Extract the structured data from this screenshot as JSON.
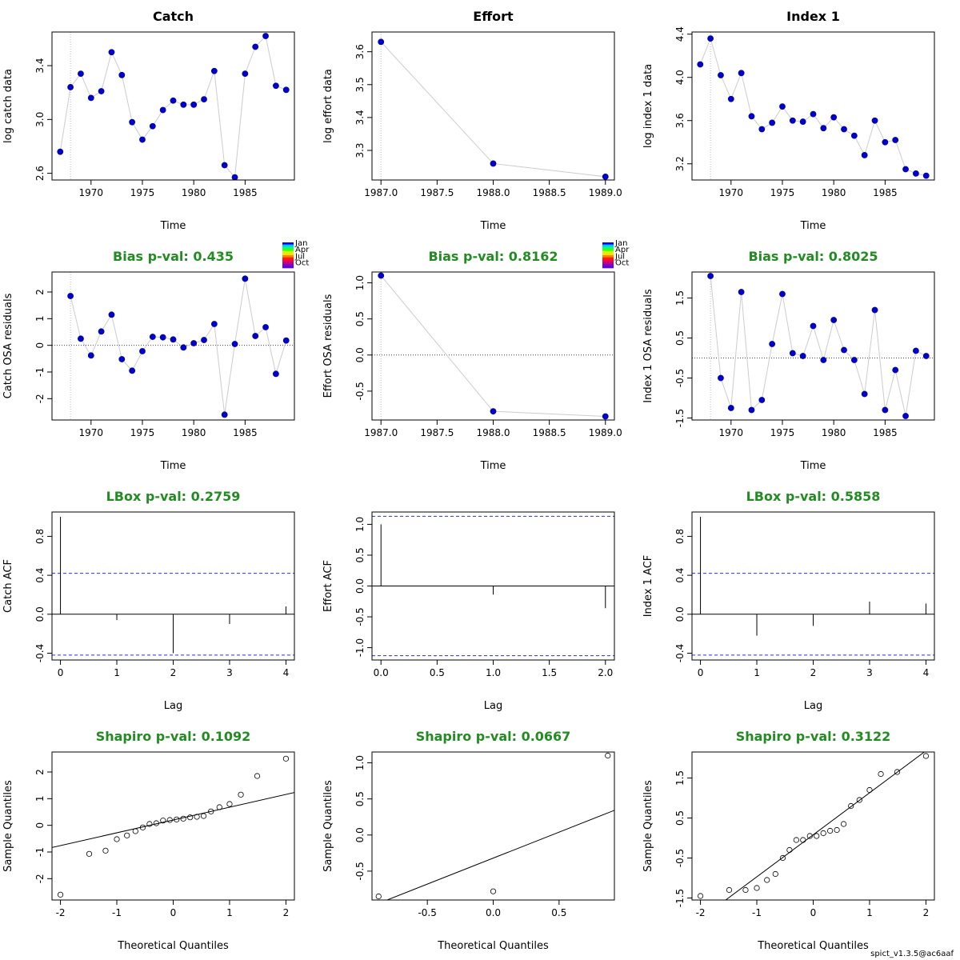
{
  "footer": "spict_v1.3.5@ac6aaf",
  "legend_months": {
    "labels": [
      "Jan",
      "Apr",
      "Jul",
      "Oct"
    ],
    "colors": [
      "#0000ff",
      "#00c8ff",
      "#00ff80",
      "#40ff00",
      "#c8ff00",
      "#ffe000",
      "#ff8000",
      "#ff2000",
      "#ff0040",
      "#c00080",
      "#8000c0",
      "#6000e0"
    ]
  },
  "chart_data": [
    {
      "type": "line",
      "title": "Catch",
      "title_color": "#000000",
      "xlabel": "Time",
      "ylabel": "log catch data",
      "xlim": [
        1966.2,
        1989.8
      ],
      "ylim": [
        2.55,
        3.65
      ],
      "xticks": [
        1970,
        1975,
        1980,
        1985
      ],
      "xtick_labels": [
        "1970",
        "1975",
        "1980",
        "1985"
      ],
      "yticks": [
        2.6,
        3.0,
        3.4
      ],
      "ytick_labels": [
        "2.6",
        "3.0",
        "3.4"
      ],
      "vline": 1968,
      "x": [
        1967,
        1968,
        1969,
        1970,
        1971,
        1972,
        1973,
        1974,
        1975,
        1976,
        1977,
        1978,
        1979,
        1980,
        1981,
        1982,
        1983,
        1984,
        1985,
        1986,
        1987,
        1988,
        1989
      ],
      "y": [
        2.76,
        3.24,
        3.34,
        3.16,
        3.21,
        3.5,
        3.33,
        2.98,
        2.85,
        2.95,
        3.07,
        3.14,
        3.11,
        3.11,
        3.15,
        3.36,
        2.66,
        2.57,
        3.34,
        3.54,
        3.62,
        3.25,
        3.22
      ]
    },
    {
      "type": "line",
      "title": "Effort",
      "title_color": "#000000",
      "xlabel": "Time",
      "ylabel": "log effort data",
      "xlim": [
        1986.92,
        1989.08
      ],
      "ylim": [
        3.21,
        3.66
      ],
      "xticks": [
        1987.0,
        1987.5,
        1988.0,
        1988.5,
        1989.0
      ],
      "xtick_labels": [
        "1987.0",
        "1987.5",
        "1988.0",
        "1988.5",
        "1989.0"
      ],
      "yticks": [
        3.3,
        3.4,
        3.5,
        3.6
      ],
      "ytick_labels": [
        "3.3",
        "3.4",
        "3.5",
        "3.6"
      ],
      "vline": 1987,
      "x": [
        1987,
        1988,
        1989
      ],
      "y": [
        3.63,
        3.26,
        3.22
      ]
    },
    {
      "type": "line",
      "title": "Index 1",
      "title_color": "#000000",
      "xlabel": "Time",
      "ylabel": "log index 1 data",
      "xlim": [
        1966.2,
        1989.8
      ],
      "ylim": [
        3.05,
        4.42
      ],
      "xticks": [
        1970,
        1975,
        1980,
        1985
      ],
      "xtick_labels": [
        "1970",
        "1975",
        "1980",
        "1985"
      ],
      "yticks": [
        3.2,
        3.6,
        4.0,
        4.4
      ],
      "ytick_labels": [
        "3.2",
        "3.6",
        "4.0",
        "4.4"
      ],
      "vline": 1968,
      "x": [
        1967,
        1968,
        1969,
        1970,
        1971,
        1972,
        1973,
        1974,
        1975,
        1976,
        1977,
        1978,
        1979,
        1980,
        1981,
        1982,
        1983,
        1984,
        1985,
        1986,
        1987,
        1988,
        1989
      ],
      "y": [
        4.12,
        4.36,
        4.02,
        3.8,
        4.04,
        3.64,
        3.52,
        3.58,
        3.73,
        3.6,
        3.59,
        3.66,
        3.53,
        3.63,
        3.52,
        3.46,
        3.28,
        3.6,
        3.4,
        3.42,
        3.15,
        3.11,
        3.09
      ]
    },
    {
      "type": "line",
      "title": "Bias p-val: 0.435",
      "title_color": "#228b22",
      "xlabel": "Time",
      "ylabel": "Catch OSA residuals",
      "xlim": [
        1966.2,
        1989.8
      ],
      "ylim": [
        -2.8,
        2.75
      ],
      "xticks": [
        1970,
        1975,
        1980,
        1985
      ],
      "xtick_labels": [
        "1970",
        "1975",
        "1980",
        "1985"
      ],
      "yticks": [
        -2,
        -1,
        0,
        1,
        2
      ],
      "ytick_labels": [
        "-2",
        "-1",
        "0",
        "1",
        "2"
      ],
      "vline": 1968,
      "hline": 0,
      "month_legend": true,
      "x": [
        1968,
        1969,
        1970,
        1971,
        1972,
        1973,
        1974,
        1975,
        1976,
        1977,
        1978,
        1979,
        1980,
        1981,
        1982,
        1983,
        1984,
        1985,
        1986,
        1987,
        1988,
        1989
      ],
      "y": [
        1.85,
        0.25,
        -0.38,
        0.52,
        1.15,
        -0.52,
        -0.95,
        -0.22,
        0.32,
        0.3,
        0.22,
        -0.08,
        0.08,
        0.2,
        0.8,
        -2.6,
        0.05,
        2.5,
        0.35,
        0.68,
        -1.07,
        0.18
      ]
    },
    {
      "type": "line",
      "title": "Bias p-val: 0.8162",
      "title_color": "#228b22",
      "xlabel": "Time",
      "ylabel": "Effort OSA residuals",
      "xlim": [
        1986.92,
        1989.08
      ],
      "ylim": [
        -0.9,
        1.15
      ],
      "xticks": [
        1987.0,
        1987.5,
        1988.0,
        1988.5,
        1989.0
      ],
      "xtick_labels": [
        "1987.0",
        "1987.5",
        "1988.0",
        "1988.5",
        "1989.0"
      ],
      "yticks": [
        -0.5,
        0.0,
        0.5,
        1.0
      ],
      "ytick_labels": [
        "-0.5",
        "0.0",
        "0.5",
        "1.0"
      ],
      "vline": 1987,
      "hline": 0,
      "month_legend": true,
      "x": [
        1987,
        1988,
        1989
      ],
      "y": [
        1.1,
        -0.78,
        -0.85
      ]
    },
    {
      "type": "line",
      "title": "Bias p-val: 0.8025",
      "title_color": "#228b22",
      "xlabel": "Time",
      "ylabel": "Index 1 OSA residuals",
      "xlim": [
        1966.2,
        1989.8
      ],
      "ylim": [
        -1.55,
        2.15
      ],
      "xticks": [
        1970,
        1975,
        1980,
        1985
      ],
      "xtick_labels": [
        "1970",
        "1975",
        "1980",
        "1985"
      ],
      "yticks": [
        -1.5,
        -0.5,
        0.5,
        1.5
      ],
      "ytick_labels": [
        "-1.5",
        "-0.5",
        "0.5",
        "1.5"
      ],
      "vline": 1968,
      "hline": 0,
      "x": [
        1968,
        1969,
        1970,
        1971,
        1972,
        1973,
        1974,
        1975,
        1976,
        1977,
        1978,
        1979,
        1980,
        1981,
        1982,
        1983,
        1984,
        1985,
        1986,
        1987,
        1988,
        1989
      ],
      "y": [
        2.05,
        -0.5,
        -1.25,
        1.65,
        -1.3,
        -1.05,
        0.35,
        1.6,
        0.12,
        0.05,
        0.8,
        -0.05,
        0.95,
        0.2,
        -0.05,
        -0.9,
        1.2,
        -1.3,
        -0.3,
        -1.45,
        0.18,
        0.05
      ]
    },
    {
      "type": "bar",
      "title": "LBox p-val: 0.2759",
      "title_color": "#228b22",
      "xlabel": "Lag",
      "ylabel": "Catch ACF",
      "xlim": [
        -0.15,
        4.15
      ],
      "ylim": [
        -0.47,
        1.05
      ],
      "xticks": [
        0,
        1,
        2,
        3,
        4
      ],
      "xtick_labels": [
        "0",
        "1",
        "2",
        "3",
        "4"
      ],
      "yticks": [
        -0.4,
        0.0,
        0.4,
        0.8
      ],
      "ytick_labels": [
        "-0.4",
        "0.0",
        "0.4",
        "0.8"
      ],
      "conf": 0.42,
      "x": [
        0,
        1,
        2,
        3,
        4
      ],
      "y": [
        1.0,
        -0.06,
        -0.4,
        -0.1,
        0.08
      ]
    },
    {
      "type": "bar",
      "title": "",
      "title_color": "#228b22",
      "xlabel": "Lag",
      "ylabel": "Effort ACF",
      "xlim": [
        -0.08,
        2.08
      ],
      "ylim": [
        -1.2,
        1.2
      ],
      "xticks": [
        0.0,
        0.5,
        1.0,
        1.5,
        2.0
      ],
      "xtick_labels": [
        "0.0",
        "0.5",
        "1.0",
        "1.5",
        "2.0"
      ],
      "yticks": [
        -1.0,
        -0.5,
        0.0,
        0.5,
        1.0
      ],
      "ytick_labels": [
        "-1.0",
        "-0.5",
        "0.0",
        "0.5",
        "1.0"
      ],
      "conf": 1.13,
      "x": [
        0,
        1,
        2
      ],
      "y": [
        1.0,
        -0.14,
        -0.36
      ]
    },
    {
      "type": "bar",
      "title": "LBox p-val: 0.5858",
      "title_color": "#228b22",
      "xlabel": "Lag",
      "ylabel": "Index 1 ACF",
      "xlim": [
        -0.15,
        4.15
      ],
      "ylim": [
        -0.47,
        1.05
      ],
      "xticks": [
        0,
        1,
        2,
        3,
        4
      ],
      "xtick_labels": [
        "0",
        "1",
        "2",
        "3",
        "4"
      ],
      "yticks": [
        -0.4,
        0.0,
        0.4,
        0.8
      ],
      "ytick_labels": [
        "-0.4",
        "0.0",
        "0.4",
        "0.8"
      ],
      "conf": 0.42,
      "x": [
        0,
        1,
        2,
        3,
        4
      ],
      "y": [
        1.0,
        -0.22,
        -0.12,
        0.13,
        0.11
      ]
    },
    {
      "type": "scatter",
      "title": "Shapiro p-val: 0.1092",
      "title_color": "#228b22",
      "xlabel": "Theoretical Quantiles",
      "ylabel": "Sample Quantiles",
      "xlim": [
        -2.15,
        2.15
      ],
      "ylim": [
        -2.8,
        2.75
      ],
      "xticks": [
        -2,
        -1,
        0,
        1,
        2
      ],
      "xtick_labels": [
        "-2",
        "-1",
        "0",
        "1",
        "2"
      ],
      "yticks": [
        -2,
        -1,
        0,
        1,
        2
      ],
      "ytick_labels": [
        "-2",
        "-1",
        "0",
        "1",
        "2"
      ],
      "qqline": [
        0.2,
        0.48
      ],
      "x": [
        -2.0,
        -1.49,
        -1.2,
        -1.0,
        -0.82,
        -0.67,
        -0.54,
        -0.42,
        -0.3,
        -0.18,
        -0.06,
        0.06,
        0.18,
        0.3,
        0.42,
        0.54,
        0.67,
        0.82,
        1.0,
        1.2,
        1.49,
        2.0
      ],
      "y": [
        -2.6,
        -1.07,
        -0.95,
        -0.52,
        -0.38,
        -0.22,
        -0.08,
        0.05,
        0.08,
        0.18,
        0.2,
        0.22,
        0.25,
        0.3,
        0.32,
        0.35,
        0.52,
        0.68,
        0.8,
        1.15,
        1.85,
        2.5
      ]
    },
    {
      "type": "scatter",
      "title": "Shapiro p-val: 0.0667",
      "title_color": "#228b22",
      "xlabel": "Theoretical Quantiles",
      "ylabel": "Sample Quantiles",
      "xlim": [
        -0.92,
        0.92
      ],
      "ylim": [
        -0.9,
        1.15
      ],
      "xticks": [
        -0.5,
        0.0,
        0.5
      ],
      "xtick_labels": [
        "-0.5",
        "0.0",
        "0.5"
      ],
      "yticks": [
        -0.5,
        0.0,
        0.5,
        1.0
      ],
      "ytick_labels": [
        "-0.5",
        "0.0",
        "0.5",
        "1.0"
      ],
      "qqline": [
        -0.32,
        0.72
      ],
      "x": [
        -0.87,
        0.0,
        0.87
      ],
      "y": [
        -0.85,
        -0.78,
        1.1
      ]
    },
    {
      "type": "scatter",
      "title": "Shapiro p-val: 0.3122",
      "title_color": "#228b22",
      "xlabel": "Theoretical Quantiles",
      "ylabel": "Sample Quantiles",
      "xlim": [
        -2.15,
        2.15
      ],
      "ylim": [
        -1.55,
        2.15
      ],
      "xticks": [
        -2,
        -1,
        0,
        1,
        2
      ],
      "xtick_labels": [
        "-2",
        "-1",
        "0",
        "1",
        "2"
      ],
      "yticks": [
        -1.5,
        -0.5,
        0.5,
        1.5
      ],
      "ytick_labels": [
        "-1.5",
        "-0.5",
        "0.5",
        "1.5"
      ],
      "qqline": [
        0.08,
        1.05
      ],
      "x": [
        -2.0,
        -1.49,
        -1.2,
        -1.0,
        -0.82,
        -0.67,
        -0.54,
        -0.42,
        -0.3,
        -0.18,
        -0.06,
        0.06,
        0.18,
        0.3,
        0.42,
        0.54,
        0.67,
        0.82,
        1.0,
        1.2,
        1.49,
        2.0
      ],
      "y": [
        -1.45,
        -1.3,
        -1.3,
        -1.25,
        -1.05,
        -0.9,
        -0.5,
        -0.3,
        -0.05,
        -0.05,
        0.05,
        0.05,
        0.12,
        0.18,
        0.2,
        0.35,
        0.8,
        0.95,
        1.2,
        1.6,
        1.65,
        2.05
      ]
    }
  ]
}
